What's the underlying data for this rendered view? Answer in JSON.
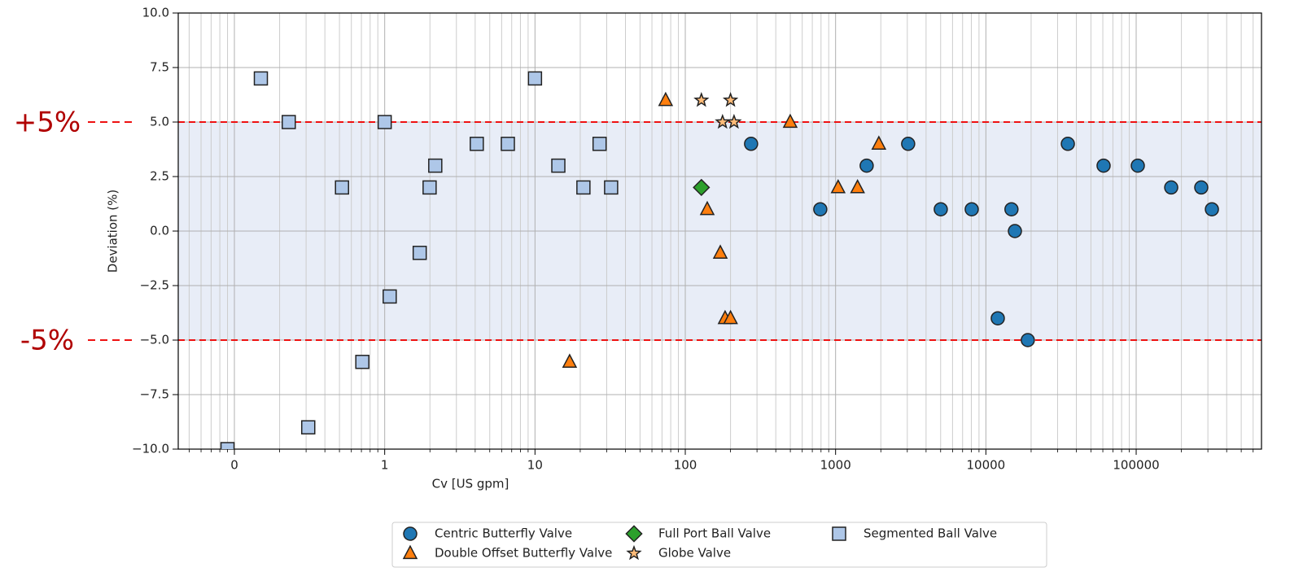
{
  "chart_data": {
    "type": "scatter",
    "xlabel": "Cv [US gpm]",
    "ylabel": "Deviation (%)",
    "xscale": "log",
    "grid": true,
    "x_minor_grid": true,
    "xlim": [
      0.0423,
      682000
    ],
    "ylim": [
      -10,
      10
    ],
    "xticks": [
      {
        "value": 0.1,
        "label": "0"
      },
      1,
      10,
      100,
      1000,
      10000,
      100000
    ],
    "yticks": [
      {
        "value": -10,
        "label": "−10.0"
      },
      {
        "value": -7.5,
        "label": "−7.5"
      },
      {
        "value": -5,
        "label": "−5.0"
      },
      {
        "value": -2.5,
        "label": "−2.5"
      },
      {
        "value": 0,
        "label": "0.0"
      },
      {
        "value": 2.5,
        "label": "2.5"
      },
      {
        "value": 5,
        "label": "5.0"
      },
      {
        "value": 7.5,
        "label": "7.5"
      },
      {
        "value": 10,
        "label": "10.0"
      }
    ],
    "band": {
      "range": [
        -5,
        5
      ],
      "color": "#e8edf7"
    },
    "hlines": {
      "values": [
        -5,
        5
      ],
      "color": "#ee1111"
    },
    "annotations": [
      {
        "text": "+5%",
        "y": 5
      },
      {
        "text": "-5%",
        "y": -5
      }
    ],
    "legend": "lower center",
    "series": [
      {
        "name": "Centric Butterfly Valve",
        "color": "#1f77b4",
        "marker": "circle",
        "x": [
          274,
          791,
          1610,
          3040,
          5010,
          8050,
          12000,
          14800,
          15600,
          19000,
          35100,
          60700,
          102500,
          171000,
          271000,
          319000
        ],
        "values": [
          4,
          1,
          3,
          4,
          1,
          1,
          -4,
          1,
          0,
          -5,
          4,
          3,
          3,
          2,
          2,
          1
        ]
      },
      {
        "name": "Double Offset Butterfly Valve",
        "color": "#ff7f0e",
        "marker": "triangle",
        "x": [
          17,
          74,
          140,
          171,
          184,
          200,
          499,
          1040,
          1400,
          1940
        ],
        "values": [
          -6,
          6,
          1,
          -1,
          -4,
          -4,
          5,
          2,
          2,
          4
        ]
      },
      {
        "name": "Full Port Ball Valve",
        "color": "#2ca02c",
        "marker": "diamond",
        "x": [
          128
        ],
        "values": [
          2
        ]
      },
      {
        "name": "Globe Valve",
        "color": "#ffbb78",
        "marker": "star",
        "x": [
          128,
          200,
          177,
          211
        ],
        "values": [
          6,
          6,
          5,
          5
        ]
      },
      {
        "name": "Segmented Ball Valve",
        "color": "#aec7e8",
        "marker": "square",
        "x": [
          0.09,
          0.15,
          0.23,
          0.31,
          0.52,
          0.71,
          1.0,
          1.08,
          1.71,
          1.99,
          2.17,
          4.1,
          6.6,
          10,
          14.3,
          21,
          26.9,
          32.1
        ],
        "values": [
          -10,
          7,
          5,
          -9,
          2,
          -6,
          5,
          -3,
          -1,
          2,
          3,
          4,
          4,
          7,
          3,
          2,
          4,
          2
        ]
      }
    ]
  }
}
